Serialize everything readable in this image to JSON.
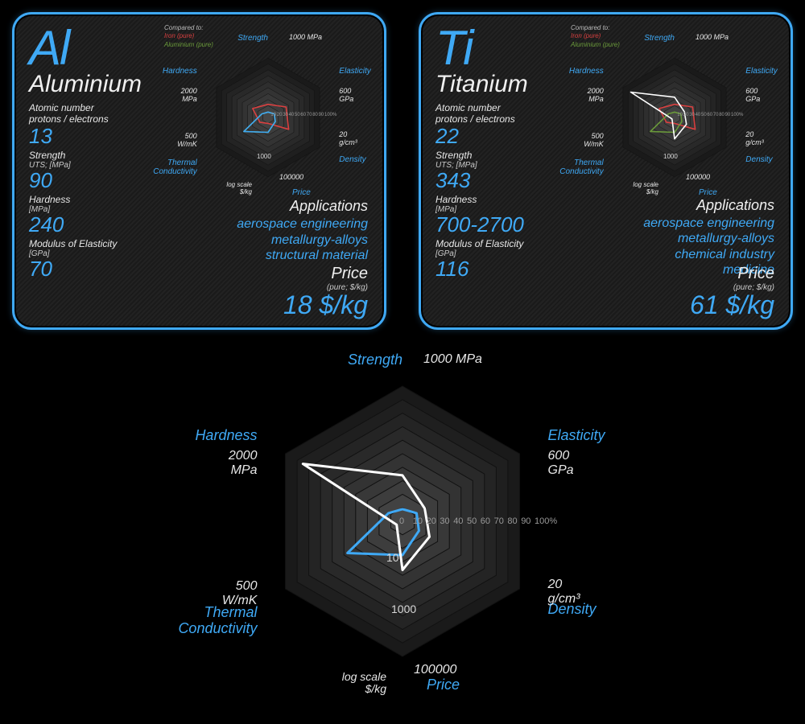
{
  "colors": {
    "accent": "#3fa9f5",
    "text": "#f0f0f0",
    "muted": "#cccccc",
    "background": "#000000",
    "card_border": "#3fa9f5",
    "radar_fill_dark": "#2a2a2a",
    "radar_fill_light": "#505050",
    "radar_stroke": "#1a1a1a",
    "series_al": "#3fa9f5",
    "series_ti": "#ffffff",
    "series_iron": "#d94040",
    "series_alum": "#6a9a3a"
  },
  "radar": {
    "axes": [
      {
        "name": "Strength",
        "max_label": "1000 MPa"
      },
      {
        "name": "Elasticity",
        "max_label": "600\nGPa"
      },
      {
        "name": "Density",
        "max_label": "20\ng/cm³"
      },
      {
        "name": "Price",
        "max_label": "100000",
        "sub": "log scale\n$/kg"
      },
      {
        "name": "Thermal\nConductivity",
        "max_label": "500\nW/mK"
      },
      {
        "name": "Hardness",
        "max_label": "2000\nMPa"
      }
    ],
    "rings": 10,
    "ticks": [
      "0",
      "10",
      "20",
      "30",
      "40",
      "50",
      "60",
      "70",
      "80",
      "90",
      "100%"
    ],
    "price_tick": "1000",
    "series": {
      "aluminium": {
        "color": "#3fa9f5",
        "values": [
          9,
          12,
          14,
          25,
          47,
          12
        ]
      },
      "titanium": {
        "color": "#ffffff",
        "values": [
          34,
          19,
          23,
          36,
          5,
          85
        ]
      }
    },
    "mini_compare": {
      "iron": {
        "color": "#d94040",
        "values": [
          22,
          35,
          40,
          10,
          16,
          30
        ]
      },
      "alum": {
        "color": "#6a9a3a",
        "values": [
          9,
          12,
          14,
          25,
          47,
          12
        ]
      }
    }
  },
  "legend_mini": {
    "title": "Compared to:",
    "line1": "Iron (pure)",
    "line2": "Aluminium (pure)"
  },
  "elements": {
    "al": {
      "symbol": "Al",
      "name": "Aluminium",
      "props": [
        {
          "label": "Atomic number\nprotons / electrons",
          "sub": "",
          "value": "13"
        },
        {
          "label": "Strength",
          "sub": "UTS; [MPa]",
          "value": "90"
        },
        {
          "label": "Hardness",
          "sub": "[MPa]",
          "value": "240"
        },
        {
          "label": "Modulus of Elasticity",
          "sub": "[GPa]",
          "value": "70"
        }
      ],
      "apps_title": "Applications",
      "apps": [
        "aerospace engineering",
        "metallurgy-alloys",
        "structural material"
      ],
      "price_title": "Price",
      "price_sub": "(pure; $/kg)",
      "price_value": "18 $/kg"
    },
    "ti": {
      "symbol": "Ti",
      "name": "Titanium",
      "props": [
        {
          "label": "Atomic number\nprotons / electrons",
          "sub": "",
          "value": "22"
        },
        {
          "label": "Strength",
          "sub": "UTS; [MPa]",
          "value": "343"
        },
        {
          "label": "Hardness",
          "sub": "[MPa]",
          "value": "700-2700"
        },
        {
          "label": "Modulus of Elasticity",
          "sub": "[GPa]",
          "value": "116"
        }
      ],
      "apps_title": "Applications",
      "apps": [
        "aerospace engineering",
        "metallurgy-alloys",
        "chemical industry",
        "medicine"
      ],
      "price_title": "Price",
      "price_sub": "(pure; $/kg)",
      "price_value": "61 $/kg"
    }
  }
}
